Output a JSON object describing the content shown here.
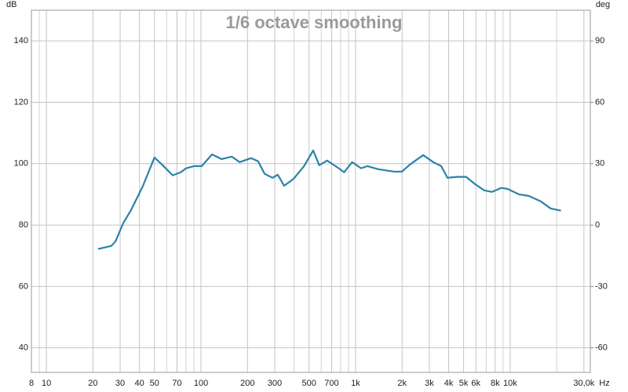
{
  "chart_data": {
    "type": "line",
    "title": "1/6 octave smoothing",
    "y_label": "dB",
    "y2_label": "deg",
    "x_label": "Hz",
    "log_x": true,
    "grid": true,
    "xlim": [
      8,
      33000
    ],
    "xticks": [
      8,
      10,
      20,
      30,
      40,
      50,
      70,
      100,
      200,
      300,
      500,
      700,
      {
        "value": 1000,
        "label": "1k"
      },
      {
        "value": 2000,
        "label": "2k"
      },
      {
        "value": 3000,
        "label": "3k"
      },
      {
        "value": 4000,
        "label": "4k"
      },
      {
        "value": 5000,
        "label": "5k"
      },
      {
        "value": 6000,
        "label": "6k"
      },
      {
        "value": 8000,
        "label": "8k"
      },
      {
        "value": 10000,
        "label": "10k"
      },
      {
        "value": 30000,
        "label": "30,0k"
      }
    ],
    "x_minor_ticks": [
      9,
      60,
      80,
      90,
      400,
      600,
      800,
      900,
      7000,
      9000,
      20000
    ],
    "ylim": [
      32,
      150
    ],
    "yticks": [
      40,
      60,
      80,
      100,
      120,
      140
    ],
    "y2lim": [
      -72,
      105
    ],
    "y2ticks": [
      -60,
      -30,
      0,
      30,
      60,
      90
    ],
    "x": [
      21.6,
      26.3,
      28,
      31.4,
      35.3,
      42,
      50,
      56,
      65.6,
      74,
      80,
      90,
      101,
      118,
      136,
      158,
      178,
      211,
      234,
      258,
      290,
      314,
      345,
      398,
      464,
      532,
      582,
      655,
      778,
      844,
      950,
      1085,
      1195,
      1400,
      1780,
      1995,
      2245,
      2740,
      3180,
      3580,
      3930,
      4510,
      5200,
      5900,
      6800,
      7630,
      8760,
      9600,
      11400,
      13200,
      15800,
      18300,
      21300
    ],
    "series": [
      {
        "color": "#2c82a8",
        "values": [
          72.2,
          73.2,
          74.7,
          80.6,
          84.9,
          92.6,
          102,
          99.7,
          96.2,
          97.2,
          98.5,
          99.2,
          99.2,
          103,
          101.5,
          102.3,
          100.5,
          101.8,
          100.8,
          96.7,
          95.4,
          96.4,
          92.8,
          95.1,
          99.2,
          104.3,
          99.5,
          101,
          98.5,
          97.2,
          100.5,
          98.5,
          99.2,
          98.2,
          97.4,
          97.4,
          99.7,
          102.8,
          100.5,
          99.2,
          95.4,
          95.7,
          95.7,
          93.4,
          91.3,
          90.8,
          92.1,
          91.8,
          90,
          89.5,
          87.7,
          85.4,
          84.7
        ]
      }
    ]
  }
}
